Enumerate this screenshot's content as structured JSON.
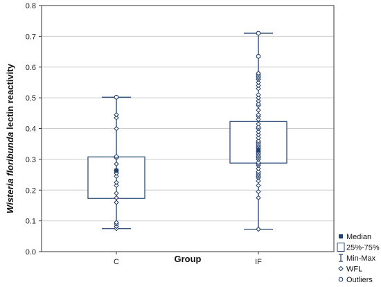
{
  "chart_data": {
    "type": "boxplot",
    "xlabel": "Group",
    "ylabel_prefix": "",
    "ylabel_italic": "Wisteria floribunda",
    "ylabel_suffix": " lectin reactivity",
    "ylim": [
      0.0,
      0.8
    ],
    "yticks": [
      "0.0",
      "0.1",
      "0.2",
      "0.3",
      "0.4",
      "0.5",
      "0.6",
      "0.7",
      "0.8"
    ],
    "grid": "horizontal",
    "legend_position": "bottom-right",
    "colors": {
      "series": "#1f3f6e",
      "grid": "#cccccc"
    },
    "groups": [
      {
        "label": "C",
        "min": 0.075,
        "q1": 0.173,
        "median": 0.263,
        "q3": 0.308,
        "max": 0.502,
        "points": [
          0.075,
          0.082,
          0.09,
          0.095,
          0.16,
          0.175,
          0.19,
          0.215,
          0.225,
          0.245,
          0.255,
          0.265,
          0.285,
          0.305,
          0.31,
          0.4,
          0.435,
          0.445
        ],
        "outliers": [
          0.502
        ]
      },
      {
        "label": "IF",
        "min": 0.073,
        "q1": 0.288,
        "median": 0.33,
        "q3": 0.423,
        "max": 0.71,
        "points": [
          0.073,
          0.175,
          0.195,
          0.215,
          0.23,
          0.24,
          0.245,
          0.25,
          0.255,
          0.26,
          0.27,
          0.28,
          0.285,
          0.29,
          0.3,
          0.305,
          0.31,
          0.315,
          0.32,
          0.325,
          0.33,
          0.335,
          0.34,
          0.345,
          0.35,
          0.355,
          0.36,
          0.37,
          0.38,
          0.39,
          0.4,
          0.405,
          0.415,
          0.43,
          0.44,
          0.445,
          0.46,
          0.475,
          0.48,
          0.49,
          0.5,
          0.51,
          0.53,
          0.54,
          0.55,
          0.56,
          0.565,
          0.57,
          0.575,
          0.58
        ],
        "outliers": [
          0.635,
          0.71
        ]
      }
    ],
    "legend": [
      {
        "symbol": "median",
        "label": "Median"
      },
      {
        "symbol": "box",
        "label": "25%-75%"
      },
      {
        "symbol": "whisker",
        "label": "Min-Max"
      },
      {
        "symbol": "diamond",
        "label": "WFL"
      },
      {
        "symbol": "circle",
        "label": "Outliers"
      }
    ]
  }
}
